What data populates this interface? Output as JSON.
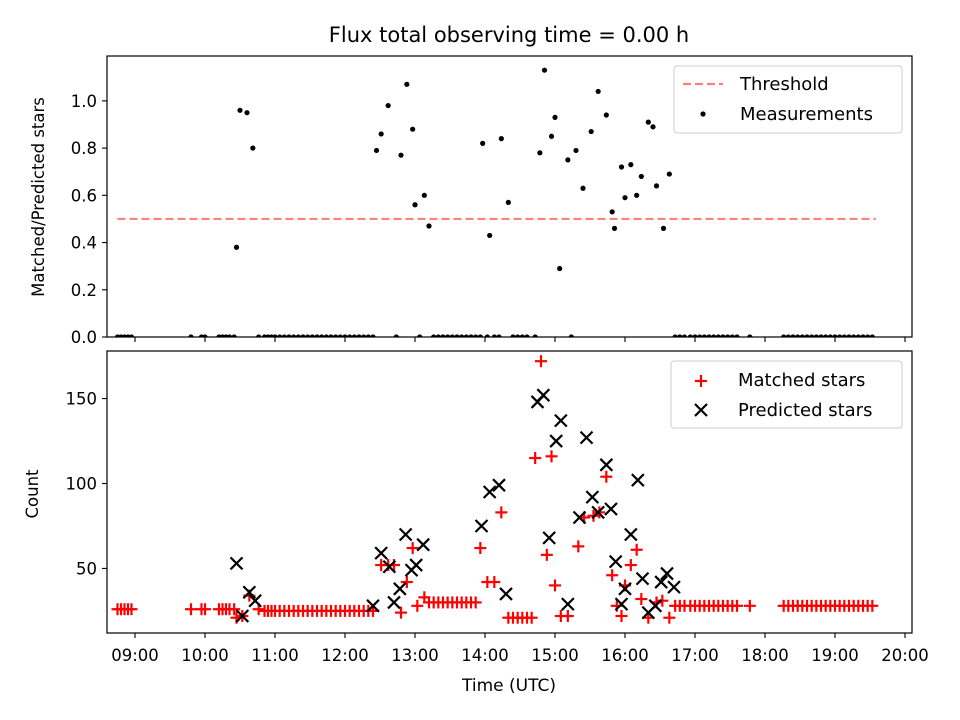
{
  "chart_data": [
    {
      "type": "scatter",
      "title": "Flux total observing time = 0.00 h",
      "xlabel": "",
      "ylabel": "Matched/Predicted stars",
      "xlim": [
        "08:36",
        "20:06"
      ],
      "ylim": [
        0,
        1.19
      ],
      "xticks": [
        "09:00",
        "10:00",
        "11:00",
        "12:00",
        "13:00",
        "14:00",
        "15:00",
        "16:00",
        "17:00",
        "18:00",
        "19:00",
        "20:00"
      ],
      "yticks": [
        "0.0",
        "0.2",
        "0.4",
        "0.6",
        "0.8",
        "1.0"
      ],
      "grid": false,
      "legend_position": "top-right",
      "threshold": {
        "name": "Threshold",
        "value": 0.5,
        "x_range": [
          "08:45",
          "19:35"
        ],
        "color": "#ff7f7f"
      },
      "series": [
        {
          "name": "Measurements",
          "color": "#000000",
          "x": [
            "08:45",
            "08:48",
            "08:51",
            "08:54",
            "08:57",
            "09:48",
            "09:57",
            "10:00",
            "10:12",
            "10:15",
            "10:18",
            "10:21",
            "10:25",
            "10:27",
            "10:30",
            "10:36",
            "10:41",
            "10:46",
            "10:51",
            "10:54",
            "10:57",
            "11:00",
            "11:04",
            "11:08",
            "11:12",
            "11:16",
            "11:20",
            "11:24",
            "11:28",
            "11:32",
            "11:36",
            "11:40",
            "11:44",
            "11:48",
            "11:52",
            "11:56",
            "12:00",
            "12:04",
            "12:08",
            "12:12",
            "12:16",
            "12:20",
            "12:24",
            "12:27",
            "12:31",
            "12:37",
            "12:44",
            "12:48",
            "12:53",
            "12:58",
            "13:00",
            "13:04",
            "13:08",
            "13:12",
            "13:16",
            "13:20",
            "13:24",
            "13:28",
            "13:32",
            "13:36",
            "13:40",
            "13:44",
            "13:48",
            "13:52",
            "13:56",
            "13:58",
            "14:02",
            "14:04",
            "14:08",
            "14:12",
            "14:14",
            "14:20",
            "14:24",
            "14:28",
            "14:32",
            "14:36",
            "14:43",
            "14:47",
            "14:51",
            "14:57",
            "15:00",
            "15:04",
            "15:11",
            "15:14",
            "15:18",
            "15:24",
            "15:31",
            "15:37",
            "15:44",
            "15:49",
            "15:51",
            "15:57",
            "16:00",
            "16:05",
            "16:10",
            "16:14",
            "16:20",
            "16:24",
            "16:27",
            "16:33",
            "16:38",
            "16:43",
            "16:47",
            "16:51",
            "16:56",
            "17:00",
            "17:04",
            "17:08",
            "17:12",
            "17:16",
            "17:20",
            "17:24",
            "17:28",
            "17:32",
            "17:36",
            "17:47",
            "18:16",
            "18:20",
            "18:24",
            "18:28",
            "18:32",
            "18:36",
            "18:40",
            "18:44",
            "18:48",
            "18:52",
            "18:56",
            "19:00",
            "19:04",
            "19:08",
            "19:12",
            "19:16",
            "19:20",
            "19:24",
            "19:28",
            "19:32"
          ],
          "y": [
            0,
            0,
            0,
            0,
            0,
            0,
            0,
            0,
            0,
            0,
            0,
            0,
            0,
            0.38,
            0.96,
            0.95,
            0.8,
            0,
            0,
            0,
            0,
            0,
            0,
            0,
            0,
            0,
            0,
            0,
            0,
            0,
            0,
            0,
            0,
            0,
            0,
            0,
            0,
            0,
            0,
            0,
            0,
            0,
            0,
            0.79,
            0.86,
            0.98,
            0,
            0.77,
            1.07,
            0.88,
            0.56,
            0,
            0.6,
            0.47,
            0,
            0,
            0,
            0,
            0,
            0,
            0,
            0,
            0,
            0,
            0,
            0.82,
            0,
            0.43,
            0,
            0,
            0.84,
            0.57,
            0,
            0,
            0,
            0,
            0,
            0.78,
            1.13,
            0.85,
            0.93,
            0.29,
            0.75,
            0,
            0.79,
            0.63,
            0.87,
            1.04,
            0.94,
            0.53,
            0.46,
            0.72,
            0.59,
            0.73,
            0.6,
            0.68,
            0.91,
            0.89,
            0.64,
            0.46,
            0.69,
            0,
            0,
            0,
            0,
            0,
            0,
            0,
            0,
            0,
            0,
            0,
            0,
            0,
            0,
            0,
            0,
            0,
            0,
            0,
            0,
            0,
            0,
            0,
            0,
            0,
            0,
            0,
            0,
            0,
            0,
            0,
            0,
            0,
            0,
            0
          ]
        }
      ]
    },
    {
      "type": "scatter",
      "title": "",
      "xlabel": "Time (UTC)",
      "ylabel": "Count",
      "xlim": [
        "08:36",
        "20:06"
      ],
      "ylim": [
        12,
        178
      ],
      "xticks": [
        "09:00",
        "10:00",
        "11:00",
        "12:00",
        "13:00",
        "14:00",
        "15:00",
        "16:00",
        "17:00",
        "18:00",
        "19:00",
        "20:00"
      ],
      "yticks": [
        "50",
        "100",
        "150"
      ],
      "grid": false,
      "legend_position": "top-right",
      "series": [
        {
          "name": "Matched stars",
          "marker": "+",
          "color": "#ff0000",
          "points": [
            [
              "08:45",
              26
            ],
            [
              "08:48",
              26
            ],
            [
              "08:51",
              26
            ],
            [
              "08:54",
              26
            ],
            [
              "08:57",
              26
            ],
            [
              "09:48",
              26
            ],
            [
              "09:57",
              26
            ],
            [
              "10:00",
              26
            ],
            [
              "10:12",
              26
            ],
            [
              "10:15",
              26
            ],
            [
              "10:18",
              26
            ],
            [
              "10:21",
              26
            ],
            [
              "10:25",
              26
            ],
            [
              "10:27",
              21
            ],
            [
              "10:32",
              22
            ],
            [
              "10:38",
              34
            ],
            [
              "10:46",
              26
            ],
            [
              "10:51",
              25
            ],
            [
              "10:54",
              25
            ],
            [
              "10:57",
              25
            ],
            [
              "11:00",
              25
            ],
            [
              "11:04",
              25
            ],
            [
              "11:08",
              25
            ],
            [
              "11:12",
              25
            ],
            [
              "11:16",
              25
            ],
            [
              "11:20",
              25
            ],
            [
              "11:24",
              25
            ],
            [
              "11:28",
              25
            ],
            [
              "11:32",
              25
            ],
            [
              "11:36",
              25
            ],
            [
              "11:40",
              25
            ],
            [
              "11:44",
              25
            ],
            [
              "11:48",
              25
            ],
            [
              "11:52",
              25
            ],
            [
              "11:56",
              25
            ],
            [
              "12:00",
              25
            ],
            [
              "12:04",
              25
            ],
            [
              "12:08",
              25
            ],
            [
              "12:12",
              25
            ],
            [
              "12:16",
              25
            ],
            [
              "12:20",
              25
            ],
            [
              "12:24",
              25
            ],
            [
              "12:31",
              52
            ],
            [
              "12:37",
              52
            ],
            [
              "12:42",
              52
            ],
            [
              "12:48",
              24
            ],
            [
              "12:53",
              42
            ],
            [
              "12:58",
              62
            ],
            [
              "13:02",
              28
            ],
            [
              "13:08",
              33
            ],
            [
              "13:12",
              30
            ],
            [
              "13:16",
              30
            ],
            [
              "13:20",
              30
            ],
            [
              "13:24",
              30
            ],
            [
              "13:28",
              30
            ],
            [
              "13:32",
              30
            ],
            [
              "13:36",
              30
            ],
            [
              "13:40",
              30
            ],
            [
              "13:44",
              30
            ],
            [
              "13:48",
              30
            ],
            [
              "13:52",
              30
            ],
            [
              "13:56",
              62
            ],
            [
              "14:02",
              42
            ],
            [
              "14:08",
              42
            ],
            [
              "14:14",
              83
            ],
            [
              "14:20",
              21
            ],
            [
              "14:24",
              21
            ],
            [
              "14:28",
              21
            ],
            [
              "14:32",
              21
            ],
            [
              "14:36",
              21
            ],
            [
              "14:40",
              21
            ],
            [
              "14:43",
              115
            ],
            [
              "14:48",
              172
            ],
            [
              "14:53",
              58
            ],
            [
              "14:57",
              116
            ],
            [
              "15:00",
              40
            ],
            [
              "15:05",
              22
            ],
            [
              "15:11",
              22
            ],
            [
              "15:20",
              63
            ],
            [
              "15:25",
              80
            ],
            [
              "15:33",
              81
            ],
            [
              "15:38",
              83
            ],
            [
              "15:44",
              104
            ],
            [
              "15:49",
              46
            ],
            [
              "15:53",
              28
            ],
            [
              "15:57",
              22
            ],
            [
              "16:00",
              40
            ],
            [
              "16:05",
              52
            ],
            [
              "16:10",
              61
            ],
            [
              "16:14",
              32
            ],
            [
              "16:20",
              21
            ],
            [
              "16:27",
              30
            ],
            [
              "16:32",
              31
            ],
            [
              "16:38",
              21
            ],
            [
              "16:43",
              28
            ],
            [
              "16:47",
              28
            ],
            [
              "16:51",
              28
            ],
            [
              "16:56",
              28
            ],
            [
              "17:00",
              28
            ],
            [
              "17:04",
              28
            ],
            [
              "17:08",
              28
            ],
            [
              "17:12",
              28
            ],
            [
              "17:16",
              28
            ],
            [
              "17:20",
              28
            ],
            [
              "17:24",
              28
            ],
            [
              "17:28",
              28
            ],
            [
              "17:32",
              28
            ],
            [
              "17:36",
              28
            ],
            [
              "17:47",
              28
            ],
            [
              "18:16",
              28
            ],
            [
              "18:20",
              28
            ],
            [
              "18:24",
              28
            ],
            [
              "18:28",
              28
            ],
            [
              "18:32",
              28
            ],
            [
              "18:36",
              28
            ],
            [
              "18:40",
              28
            ],
            [
              "18:44",
              28
            ],
            [
              "18:48",
              28
            ],
            [
              "18:52",
              28
            ],
            [
              "18:56",
              28
            ],
            [
              "19:00",
              28
            ],
            [
              "19:04",
              28
            ],
            [
              "19:08",
              28
            ],
            [
              "19:12",
              28
            ],
            [
              "19:16",
              28
            ],
            [
              "19:20",
              28
            ],
            [
              "19:24",
              28
            ],
            [
              "19:28",
              28
            ],
            [
              "19:32",
              28
            ]
          ]
        },
        {
          "name": "Predicted stars",
          "marker": "x",
          "color": "#000000",
          "points": [
            [
              "10:27",
              53
            ],
            [
              "10:32",
              22
            ],
            [
              "10:38",
              36
            ],
            [
              "10:43",
              31
            ],
            [
              "12:24",
              28
            ],
            [
              "12:31",
              59
            ],
            [
              "12:38",
              51
            ],
            [
              "12:42",
              30
            ],
            [
              "12:47",
              38
            ],
            [
              "12:52",
              70
            ],
            [
              "12:57",
              49
            ],
            [
              "13:01",
              52
            ],
            [
              "13:07",
              64
            ],
            [
              "13:57",
              75
            ],
            [
              "14:04",
              95
            ],
            [
              "14:12",
              99
            ],
            [
              "14:18",
              35
            ],
            [
              "14:45",
              148
            ],
            [
              "14:50",
              152
            ],
            [
              "14:55",
              68
            ],
            [
              "15:01",
              125
            ],
            [
              "15:05",
              137
            ],
            [
              "15:11",
              29
            ],
            [
              "15:21",
              80
            ],
            [
              "15:27",
              127
            ],
            [
              "15:32",
              92
            ],
            [
              "15:37",
              83
            ],
            [
              "15:44",
              111
            ],
            [
              "15:48",
              85
            ],
            [
              "15:52",
              54
            ],
            [
              "15:57",
              29
            ],
            [
              "16:00",
              38
            ],
            [
              "16:05",
              70
            ],
            [
              "16:11",
              102
            ],
            [
              "16:15",
              44
            ],
            [
              "16:20",
              24
            ],
            [
              "16:26",
              28
            ],
            [
              "16:31",
              42
            ],
            [
              "16:36",
              47
            ],
            [
              "16:42",
              39
            ]
          ]
        }
      ]
    }
  ]
}
